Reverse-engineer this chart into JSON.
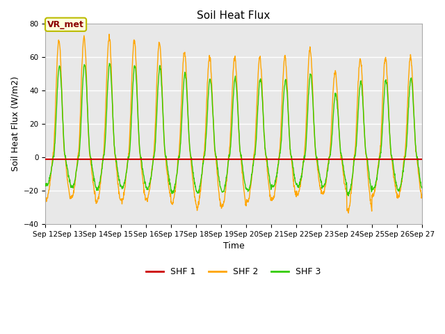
{
  "title": "Soil Heat Flux",
  "xlabel": "Time",
  "ylabel": "Soil Heat Flux (W/m2)",
  "ylim": [
    -40,
    80
  ],
  "background_color": "#e8e8e8",
  "grid_color": "white",
  "shf1_color": "#cc0000",
  "shf2_color": "#ffa500",
  "shf3_color": "#33cc00",
  "annotation_text": "VR_met",
  "annotation_color": "#8b0000",
  "annotation_bg": "#ffffdd",
  "annotation_border": "#bbbb00",
  "x_tick_labels": [
    "Sep 12",
    "Sep 13",
    "Sep 14",
    "Sep 15",
    "Sep 16",
    "Sep 17",
    "Sep 18",
    "Sep 19",
    "Sep 20",
    "Sep 21",
    "Sep 22",
    "Sep 23",
    "Sep 24",
    "Sep 25",
    "Sep 26",
    "Sep 27"
  ],
  "n_days": 15,
  "title_fontsize": 11,
  "axis_label_fontsize": 9,
  "tick_fontsize": 7.5,
  "legend_fontsize": 9,
  "shf2_peak_amps": [
    70,
    72,
    72,
    70,
    69,
    63,
    60,
    60,
    60,
    60,
    65,
    51,
    59,
    60,
    60
  ],
  "shf2_trough_amps": [
    25,
    24,
    27,
    26,
    25,
    28,
    30,
    30,
    27,
    25,
    22,
    22,
    32,
    23,
    24
  ],
  "shf3_peak_amps": [
    55,
    56,
    56,
    55,
    54,
    50,
    47,
    47,
    47,
    46,
    50,
    38,
    45,
    46,
    47
  ],
  "shf3_trough_amps": [
    17,
    18,
    19,
    18,
    19,
    21,
    21,
    21,
    20,
    18,
    17,
    18,
    22,
    19,
    20
  ]
}
